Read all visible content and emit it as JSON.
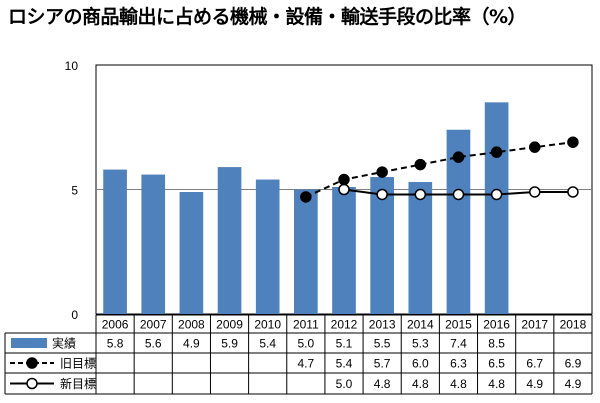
{
  "chart_data": {
    "type": "bar",
    "title": "ロシアの商品輸出に占める機械・設備・輸送手段の比率（%）",
    "categories": [
      "2006",
      "2007",
      "2008",
      "2009",
      "2010",
      "2011",
      "2012",
      "2013",
      "2014",
      "2015",
      "2016",
      "2017",
      "2018"
    ],
    "ylim": [
      0,
      10
    ],
    "yticks": [
      0,
      5,
      10
    ],
    "grid": "horizontal",
    "legend": "table-below",
    "series": [
      {
        "name": "実績",
        "kind": "bar",
        "color": "#4f81bd",
        "values": [
          5.8,
          5.6,
          4.9,
          5.9,
          5.4,
          5.0,
          5.1,
          5.5,
          5.3,
          7.4,
          8.5,
          null,
          null
        ]
      },
      {
        "name": "旧目標",
        "kind": "line-dashed",
        "marker": "filled-circle",
        "color": "#000000",
        "values": [
          null,
          null,
          null,
          null,
          null,
          4.7,
          5.4,
          5.7,
          6.0,
          6.3,
          6.5,
          6.7,
          6.9
        ]
      },
      {
        "name": "新目標",
        "kind": "line",
        "marker": "open-circle",
        "color": "#000000",
        "values": [
          null,
          null,
          null,
          null,
          null,
          null,
          5.0,
          4.8,
          4.8,
          4.8,
          4.8,
          4.9,
          4.9
        ]
      }
    ],
    "table_values": {
      "actual": [
        "5.8",
        "5.6",
        "4.9",
        "5.9",
        "5.4",
        "5.0",
        "5.1",
        "5.5",
        "5.3",
        "7.4",
        "8.5",
        "",
        ""
      ],
      "old_target": [
        "",
        "",
        "",
        "",
        "",
        "4.7",
        "5.4",
        "5.7",
        "6.0",
        "6.3",
        "6.5",
        "6.7",
        "6.9"
      ],
      "new_target": [
        "",
        "",
        "",
        "",
        "",
        "",
        "5.0",
        "4.8",
        "4.8",
        "4.8",
        "4.8",
        "4.9",
        "4.9"
      ]
    }
  }
}
